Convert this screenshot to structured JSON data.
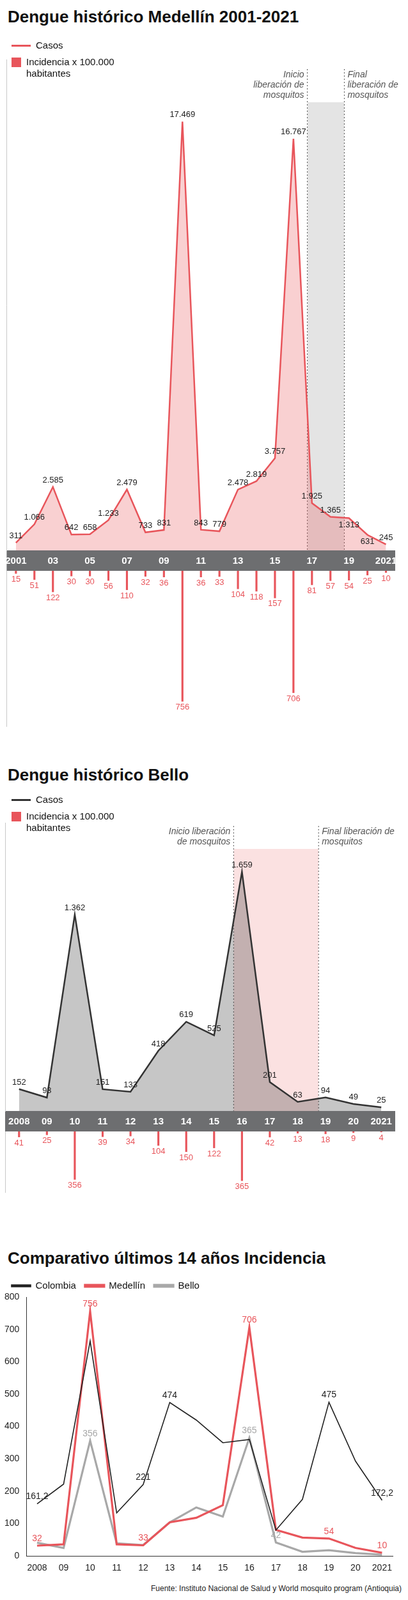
{
  "chart_data": [
    {
      "type": "line",
      "title": "Dengue histórico Medellín 2001-2021",
      "x": [
        2001,
        2002,
        2003,
        2004,
        2005,
        2006,
        2007,
        2008,
        2009,
        2010,
        2011,
        2012,
        2013,
        2014,
        2015,
        2016,
        2017,
        2018,
        2019,
        2020,
        2021
      ],
      "xlim": [
        2000.5,
        2021.5
      ],
      "xticks": [
        2001,
        {
          "value": 2003,
          "label": "03"
        },
        {
          "value": 2005,
          "label": "05"
        },
        {
          "value": 2007,
          "label": "07"
        },
        {
          "value": 2009,
          "label": "09"
        },
        {
          "value": 2011,
          "label": "11"
        },
        {
          "value": 2013,
          "label": "13"
        },
        {
          "value": 2015,
          "label": "15"
        },
        {
          "value": 2017,
          "label": "17"
        },
        {
          "value": 2019,
          "label": "19"
        },
        2021
      ],
      "ylim": [
        0,
        20000
      ],
      "y2lim": [
        0,
        900
      ],
      "tick_labels": "x",
      "grid": false,
      "data_labels": true,
      "legend": "top-left",
      "series": [
        {
          "name": "Casos",
          "type": "line",
          "color": "#e8555b",
          "axis": "y",
          "values": [
            311,
            1066,
            2585,
            642,
            658,
            1233,
            2479,
            733,
            831,
            17469,
            843,
            779,
            2478,
            2819,
            3757,
            16767,
            1925,
            1365,
            1313,
            631,
            245
          ],
          "value_labels": [
            "311",
            "1.066",
            "2.585",
            "642",
            "658",
            "1.233",
            "2.479",
            "733",
            "831",
            "17.469",
            "843",
            "779",
            "2.478",
            "2.819",
            "3.757",
            "16.767",
            "1.925",
            "1.365",
            "1.313",
            "631",
            "245"
          ]
        },
        {
          "name": "Incidencia x 100.000 habitantes",
          "type": "bar",
          "color": "#e8555b",
          "axis": "y2",
          "values": [
            15,
            51,
            122,
            30,
            30,
            56,
            110,
            32,
            36,
            756,
            36,
            33,
            104,
            118,
            157,
            706,
            81,
            57,
            54,
            25,
            10
          ]
        }
      ],
      "span": {
        "from": 2016.75,
        "to": 2018.75,
        "color": "#e4e4e4",
        "labels": [
          "Inicio liberación de mosquitos",
          "Final liberación de mosquitos"
        ]
      }
    },
    {
      "type": "line",
      "title": "Dengue histórico Bello",
      "x": [
        2008,
        2009,
        2010,
        2011,
        2012,
        2013,
        2014,
        2015,
        2016,
        2017,
        2018,
        2019,
        2020,
        2021
      ],
      "xlim": [
        2007.5,
        2021.5
      ],
      "xticks": [
        2008,
        {
          "value": 2009,
          "label": "09"
        },
        {
          "value": 2010,
          "label": "10"
        },
        {
          "value": 2011,
          "label": "11"
        },
        {
          "value": 2012,
          "label": "12"
        },
        {
          "value": 2013,
          "label": "13"
        },
        {
          "value": 2014,
          "label": "14"
        },
        {
          "value": 2015,
          "label": "15"
        },
        {
          "value": 2016,
          "label": "16"
        },
        {
          "value": 2017,
          "label": "17"
        },
        {
          "value": 2018,
          "label": "18"
        },
        {
          "value": 2019,
          "label": "19"
        },
        {
          "value": 2020,
          "label": "20"
        },
        2021
      ],
      "ylim": [
        0,
        2000
      ],
      "y2lim": [
        0,
        450
      ],
      "tick_labels": "x",
      "grid": false,
      "data_labels": true,
      "legend": "top-left",
      "series": [
        {
          "name": "Casos",
          "type": "line",
          "color": "#333333",
          "axis": "y",
          "values": [
            152,
            93,
            1362,
            151,
            133,
            418,
            619,
            525,
            1659,
            201,
            63,
            94,
            49,
            25
          ],
          "value_labels": [
            "152",
            "93",
            "1.362",
            "151",
            "133",
            "418",
            "619",
            "525",
            "1.659",
            "201",
            "63",
            "94",
            "49",
            "25"
          ]
        },
        {
          "name": "Incidencia x 100.000 habitantes",
          "type": "bar",
          "color": "#e8555b",
          "axis": "y2",
          "values": [
            41,
            25,
            356,
            39,
            34,
            104,
            150,
            122,
            365,
            42,
            13,
            18,
            9,
            4
          ]
        }
      ],
      "span": {
        "from": 2015.7,
        "to": 2018.75,
        "color": "#fbe1e1",
        "labels": [
          "Inicio liberación de mosquitos",
          "Final liberación de mosquitos"
        ]
      }
    },
    {
      "type": "line",
      "title": "Comparativo últimos 14 años Incidencia",
      "x": [
        2008,
        2009,
        2010,
        2011,
        2012,
        2013,
        2014,
        2015,
        2016,
        2017,
        2018,
        2019,
        2020,
        2021
      ],
      "xlim": [
        2007.6,
        2021.4
      ],
      "xticks": [
        2008,
        {
          "value": 2009,
          "label": "09"
        },
        {
          "value": 2010,
          "label": "10"
        },
        {
          "value": 2011,
          "label": "11"
        },
        {
          "value": 2012,
          "label": "12"
        },
        {
          "value": 2013,
          "label": "13"
        },
        {
          "value": 2014,
          "label": "14"
        },
        {
          "value": 2015,
          "label": "15"
        },
        {
          "value": 2016,
          "label": "16"
        },
        {
          "value": 2017,
          "label": "17"
        },
        {
          "value": 2018,
          "label": "18"
        },
        {
          "value": 2019,
          "label": "19"
        },
        {
          "value": 2020,
          "label": "20"
        },
        2021
      ],
      "ylim": [
        0,
        800
      ],
      "yticks": [
        0,
        100,
        200,
        300,
        400,
        500,
        600,
        700,
        800
      ],
      "grid": false,
      "legend": "top-left",
      "series": [
        {
          "name": "Colombia",
          "color": "#222222",
          "values": [
            161.2,
            222,
            664,
            133,
            221,
            474,
            420,
            350,
            360,
            80,
            175,
            475,
            293,
            172.2
          ],
          "value_labels": [
            "161,2",
            null,
            null,
            null,
            "221",
            "474",
            null,
            null,
            null,
            null,
            null,
            "475",
            null,
            "172,2"
          ]
        },
        {
          "name": "Medellín",
          "color": "#e8555b",
          "values": [
            32,
            36,
            756,
            36,
            33,
            104,
            118,
            157,
            706,
            81,
            57,
            54,
            25,
            10
          ],
          "value_labels": [
            "32",
            null,
            "756",
            null,
            "33",
            null,
            null,
            null,
            "706",
            null,
            null,
            "54",
            null,
            "10"
          ]
        },
        {
          "name": "Bello",
          "color": "#a8a8a8",
          "values": [
            41,
            25,
            356,
            39,
            34,
            104,
            150,
            122,
            365,
            42,
            13,
            18,
            9,
            4
          ],
          "value_labels": [
            null,
            null,
            "356",
            null,
            null,
            null,
            null,
            null,
            "365",
            "42",
            null,
            null,
            null,
            null
          ]
        }
      ]
    }
  ],
  "source": "Fuente: Instituto Nacional de Salud y World mosquito program (Antioquia)"
}
